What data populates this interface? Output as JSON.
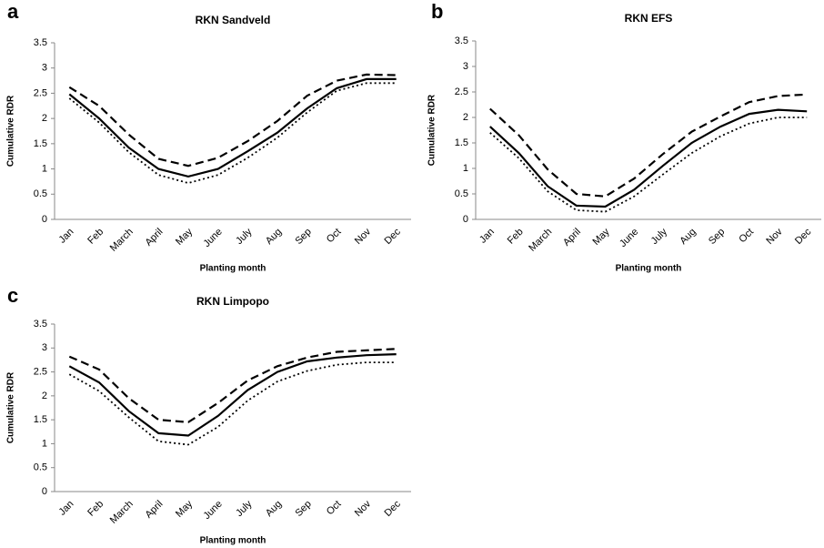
{
  "chart_data": [
    {
      "type": "line",
      "panel": "a",
      "title": "RKN Sandveld",
      "x_label": "Planting month",
      "y_label": "Cumulative RDR",
      "categories": [
        "Jan",
        "Feb",
        "March",
        "April",
        "May",
        "June",
        "July",
        "Aug",
        "Sep",
        "Oct",
        "Nov",
        "Dec"
      ],
      "ylim": [
        0,
        3.5
      ],
      "yticks": [
        0,
        0.5,
        1,
        1.5,
        2,
        2.5,
        3,
        3.5
      ],
      "series": [
        {
          "color": "#000000",
          "style": "solid",
          "values": [
            2.48,
            2.0,
            1.42,
            1.0,
            0.85,
            1.0,
            1.35,
            1.72,
            2.2,
            2.6,
            2.78,
            2.78
          ]
        },
        {
          "color": "#000000",
          "style": "dashed",
          "values": [
            2.62,
            2.25,
            1.68,
            1.2,
            1.06,
            1.22,
            1.55,
            1.95,
            2.45,
            2.75,
            2.87,
            2.86
          ]
        },
        {
          "color": "#000000",
          "style": "dotted",
          "values": [
            2.4,
            1.92,
            1.33,
            0.88,
            0.72,
            0.88,
            1.22,
            1.62,
            2.12,
            2.55,
            2.7,
            2.7
          ]
        }
      ]
    },
    {
      "type": "line",
      "panel": "b",
      "title": "RKN EFS",
      "x_label": "Planting month",
      "y_label": "Cumulative RDR",
      "categories": [
        "Jan",
        "Feb",
        "March",
        "April",
        "May",
        "June",
        "July",
        "Aug",
        "Sep",
        "Oct",
        "Nov",
        "Dec"
      ],
      "ylim": [
        0,
        3.5
      ],
      "yticks": [
        0,
        0.5,
        1,
        1.5,
        2,
        2.5,
        3,
        3.5
      ],
      "series": [
        {
          "color": "#000000",
          "style": "solid",
          "values": [
            1.82,
            1.3,
            0.65,
            0.27,
            0.25,
            0.58,
            1.05,
            1.5,
            1.82,
            2.07,
            2.15,
            2.12
          ]
        },
        {
          "color": "#000000",
          "style": "dashed",
          "values": [
            2.17,
            1.65,
            0.98,
            0.5,
            0.45,
            0.8,
            1.28,
            1.72,
            2.02,
            2.3,
            2.42,
            2.45
          ]
        },
        {
          "color": "#000000",
          "style": "dotted",
          "values": [
            1.7,
            1.2,
            0.55,
            0.18,
            0.15,
            0.45,
            0.88,
            1.3,
            1.63,
            1.88,
            2.0,
            2.0
          ]
        }
      ]
    },
    {
      "type": "line",
      "panel": "c",
      "title": "RKN Limpopo",
      "x_label": "Planting month",
      "y_label": "Cumulative RDR",
      "categories": [
        "Jan",
        "Feb",
        "March",
        "April",
        "May",
        "June",
        "July",
        "Aug",
        "Sep",
        "Oct",
        "Nov",
        "Dec"
      ],
      "ylim": [
        0,
        3.5
      ],
      "yticks": [
        0,
        0.5,
        1,
        1.5,
        2,
        2.5,
        3,
        3.5
      ],
      "series": [
        {
          "color": "#000000",
          "style": "solid",
          "values": [
            2.62,
            2.28,
            1.68,
            1.22,
            1.17,
            1.58,
            2.12,
            2.5,
            2.72,
            2.8,
            2.85,
            2.87
          ]
        },
        {
          "color": "#000000",
          "style": "dashed",
          "values": [
            2.82,
            2.55,
            1.95,
            1.5,
            1.45,
            1.85,
            2.32,
            2.62,
            2.8,
            2.92,
            2.95,
            2.98
          ]
        },
        {
          "color": "#000000",
          "style": "dotted",
          "values": [
            2.45,
            2.1,
            1.55,
            1.05,
            0.98,
            1.35,
            1.9,
            2.3,
            2.52,
            2.65,
            2.7,
            2.7
          ]
        }
      ]
    }
  ]
}
